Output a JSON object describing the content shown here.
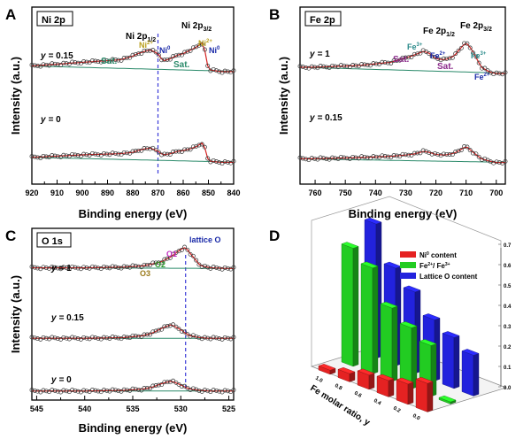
{
  "chart_data": [
    {
      "panel": "A",
      "type": "line",
      "title": "Ni 2p",
      "xlabel": "Binding energy (eV)",
      "ylabel": "Intensity (a.u.)",
      "xlim": [
        920,
        840
      ],
      "xticks": [
        920,
        910,
        900,
        890,
        880,
        870,
        860,
        850,
        840
      ],
      "dashed_line_x": 870,
      "series": [
        {
          "name": "y = 0.15",
          "x": [
            920,
            900,
            885,
            880,
            878,
            875,
            873,
            870,
            868,
            865,
            862,
            860,
            857,
            855,
            853,
            852,
            850,
            845
          ],
          "y": [
            0.62,
            0.68,
            0.72,
            0.78,
            0.82,
            0.86,
            0.88,
            0.82,
            0.7,
            0.74,
            0.8,
            0.82,
            0.88,
            0.92,
            0.98,
            1.0,
            0.56,
            0.53
          ]
        },
        {
          "name": "y = 0",
          "x": [
            920,
            900,
            885,
            880,
            878,
            875,
            873,
            870,
            868,
            865,
            862,
            860,
            857,
            855,
            853,
            852,
            850,
            845
          ],
          "y": [
            0.26,
            0.3,
            0.32,
            0.34,
            0.37,
            0.4,
            0.41,
            0.36,
            0.3,
            0.32,
            0.36,
            0.37,
            0.4,
            0.43,
            0.48,
            0.5,
            0.2,
            0.18
          ]
        }
      ],
      "annotations": [
        "Ni 2p1/2",
        "Ni 2p3/2",
        "Sat.",
        "Sat.",
        "Ni2+",
        "Ni0",
        "Ni2+",
        "Ni0"
      ]
    },
    {
      "panel": "B",
      "type": "line",
      "title": "Fe 2p",
      "xlabel": "Binding energy (eV)",
      "ylabel": "Intensity (a.u.)",
      "xlim": [
        765,
        697
      ],
      "xticks": [
        760,
        750,
        740,
        730,
        720,
        710,
        700
      ],
      "series": [
        {
          "name": "y = 1",
          "x": [
            760,
            745,
            735,
            730,
            727,
            724,
            722,
            720,
            717,
            714,
            712,
            710,
            708,
            705,
            702,
            700
          ],
          "y": [
            0.6,
            0.63,
            0.68,
            0.75,
            0.8,
            0.86,
            0.82,
            0.74,
            0.72,
            0.78,
            0.9,
            1.0,
            0.88,
            0.6,
            0.52,
            0.5
          ]
        },
        {
          "name": "y = 0.15",
          "x": [
            760,
            745,
            735,
            730,
            727,
            724,
            722,
            720,
            717,
            714,
            712,
            710,
            708,
            705,
            702,
            700
          ],
          "y": [
            0.18,
            0.2,
            0.22,
            0.24,
            0.26,
            0.3,
            0.28,
            0.25,
            0.24,
            0.27,
            0.32,
            0.38,
            0.3,
            0.18,
            0.14,
            0.12
          ]
        }
      ],
      "annotations": [
        "Fe 2p1/2",
        "Fe 2p3/2",
        "Sat.",
        "Sat.",
        "Fe3+",
        "Fe2+",
        "Fe3+",
        "Fe2+"
      ]
    },
    {
      "panel": "C",
      "type": "line",
      "title": "O 1s",
      "xlabel": "Binding energy (eV)",
      "ylabel": "Intensity (a.u.)",
      "xlim": [
        545.5,
        524.5
      ],
      "xticks": [
        545,
        540,
        535,
        530,
        525
      ],
      "dashed_line_x": 529.5,
      "series": [
        {
          "name": "y = 1",
          "x": [
            545,
            540,
            536,
            534,
            533,
            532,
            531,
            530,
            529.5,
            529,
            528,
            527,
            525
          ],
          "y": [
            0.62,
            0.62,
            0.63,
            0.65,
            0.68,
            0.72,
            0.8,
            0.92,
            0.95,
            0.85,
            0.66,
            0.62,
            0.61
          ]
        },
        {
          "name": "y = 0.15",
          "x": [
            545,
            540,
            536,
            534,
            533,
            532,
            531,
            530,
            529.5,
            529,
            528,
            527,
            525
          ],
          "y": [
            0.34,
            0.34,
            0.35,
            0.38,
            0.42,
            0.5,
            0.56,
            0.48,
            0.42,
            0.38,
            0.35,
            0.34,
            0.34
          ]
        },
        {
          "name": "y = 0",
          "x": [
            545,
            540,
            536,
            534,
            533,
            532,
            531,
            530,
            529.5,
            529,
            528,
            527,
            525
          ],
          "y": [
            0.06,
            0.06,
            0.07,
            0.09,
            0.12,
            0.18,
            0.22,
            0.16,
            0.12,
            0.09,
            0.07,
            0.06,
            0.06
          ]
        }
      ],
      "annotations": [
        "lattice O",
        "O1",
        "O2",
        "O3"
      ]
    },
    {
      "panel": "D",
      "type": "bar",
      "xlabel": "Fe molar ratio, y",
      "zlim": [
        0,
        0.7
      ],
      "zticks": [
        0.0,
        0.1,
        0.2,
        0.3,
        0.4,
        0.5,
        0.6,
        0.7
      ],
      "categories": [
        "1.0",
        "0.8",
        "0.6",
        "0.4",
        "0.2",
        "0.0"
      ],
      "series": [
        {
          "name": "Ni0 content",
          "color": "#e52222",
          "values": [
            0.02,
            0.04,
            0.07,
            0.08,
            0.1,
            0.14
          ]
        },
        {
          "name": "Fe2+/Fe3+",
          "color": "#22cc22",
          "values": [
            0.58,
            0.52,
            0.36,
            0.3,
            0.25,
            0.01
          ]
        },
        {
          "name": "Lattice O content",
          "color": "#2222dd",
          "values": [
            0.66,
            0.48,
            0.4,
            0.3,
            0.25,
            0.2
          ]
        }
      ]
    }
  ],
  "labels": {
    "A": "A",
    "B": "B",
    "C": "C",
    "D": "D",
    "a_title": "Ni 2p",
    "b_title": "Fe 2p",
    "c_title": "O 1s",
    "a_ni12": "Ni 2p",
    "a_ni12_sub": "1/2",
    "a_ni32": "Ni 2p",
    "a_ni32_sub": "3/2",
    "a_sat": "Sat.",
    "a_ni2": "Ni",
    "a_ni2_sup": "2+",
    "a_ni0": "Ni",
    "a_ni0_sup": "0",
    "a_y1": "= 0.15",
    "a_y2": "= 0",
    "b_fe12": "Fe 2p",
    "b_fe12_sub": "1/2",
    "b_fe32": "Fe 2p",
    "b_fe32_sub": "3/2",
    "b_sat": "Sat.",
    "b_fe": "Fe",
    "b_fe3_sup": "3+",
    "b_fe2_sup": "2+",
    "b_y1": "= 1",
    "b_y2": "= 0.15",
    "c_lattice": "lattice O",
    "c_o1": "O1",
    "c_o2": "O2",
    "c_o3": "O3",
    "c_y1": "= 1",
    "c_y2": "= 0.15",
    "c_y3": "= 0",
    "y_var": "y",
    "xlabel": "Binding energy (eV)",
    "ylabel": "Intensity (a.u.)",
    "d_leg1": "Ni",
    "d_leg1_sup": "0",
    "d_leg1_rest": " content",
    "d_leg2": "Fe",
    "d_leg2_sup1": "2+",
    "d_leg2_mid": "/ Fe",
    "d_leg2_sup2": "3+",
    "d_leg3": "Lattice O content",
    "d_xlabel": "Fe molar ratio, y"
  }
}
